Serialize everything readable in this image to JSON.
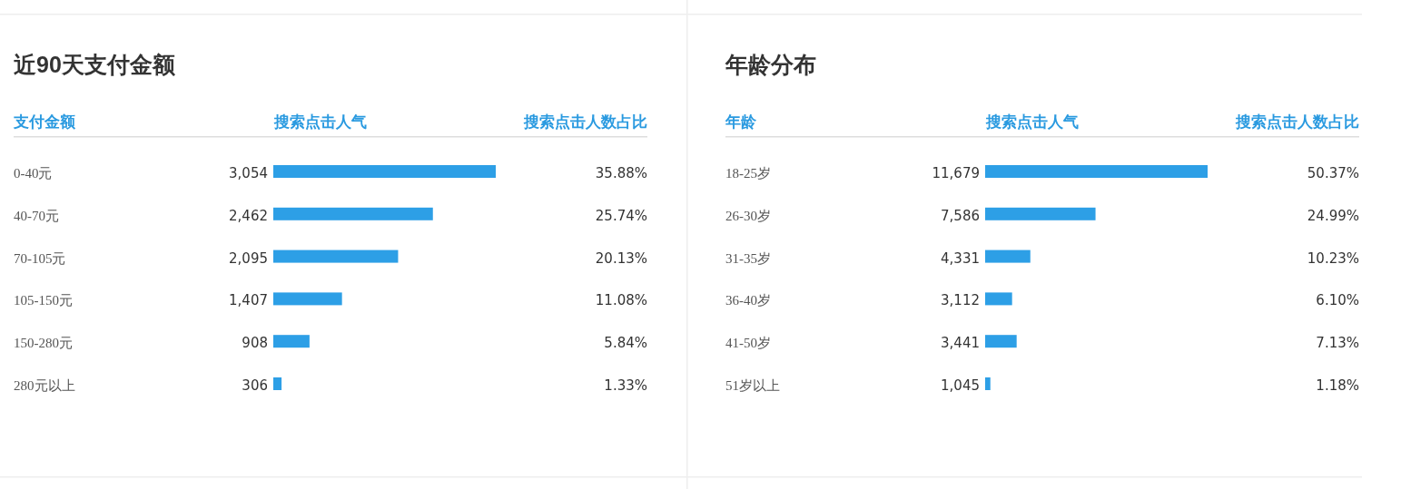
{
  "chart_data": [
    {
      "type": "bar",
      "orientation": "horizontal",
      "title": "近90天支付金额",
      "ylabel": "支付金额",
      "categories": [
        "0-40元",
        "40-70元",
        "70-105元",
        "105-150元",
        "150-280元",
        "280元以上"
      ],
      "series": [
        {
          "name": "搜索点击人数占比",
          "color": "#2d9fe6",
          "values": [
            35.88,
            25.74,
            20.13,
            11.08,
            5.84,
            1.33
          ],
          "value_labels": [
            "35.88%",
            "25.74%",
            "20.13%",
            "11.08%",
            "5.84%",
            "1.33%"
          ]
        }
      ],
      "annotations": [
        "搜索点击人气",
        "3,054",
        "2,462",
        "2,095",
        "1,407",
        "908",
        "306"
      ]
    },
    {
      "type": "bar",
      "orientation": "horizontal",
      "title": "年龄分布",
      "ylabel": "年龄",
      "categories": [
        "18-25岁",
        "26-30岁",
        "31-35岁",
        "36-40岁",
        "41-50岁",
        "51岁以上"
      ],
      "series": [
        {
          "name": "搜索点击人数占比",
          "color": "#2d9fe6",
          "values": [
            50.37,
            24.99,
            10.23,
            6.1,
            7.13,
            1.18
          ],
          "value_labels": [
            "50.37%",
            "24.99%",
            "10.23%",
            "6.10%",
            "7.13%",
            "1.18%"
          ]
        }
      ],
      "annotations": [
        "搜索点击人气",
        "11,679",
        "7,586",
        "4,331",
        "3,112",
        "3,441",
        "1,045"
      ]
    }
  ]
}
